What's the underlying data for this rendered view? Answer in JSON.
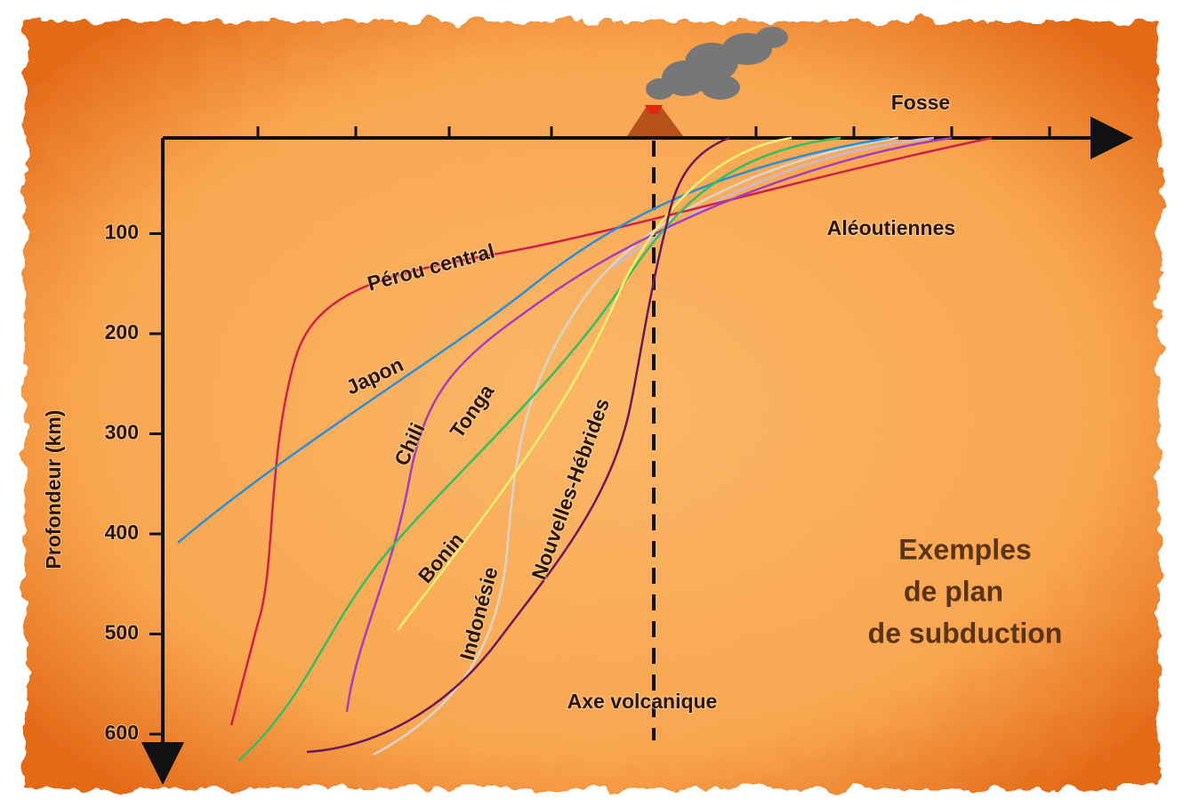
{
  "title": [
    "Exemples",
    "de plan",
    "de subduction"
  ],
  "depth_axis": {
    "label": "Profondeur (km)",
    "ylim": [
      0,
      600
    ],
    "yticks": [
      100,
      200,
      300,
      400,
      500,
      600
    ]
  },
  "top_axis": {
    "label": "Fosse"
  },
  "volcanic_axis": "Axe volcanique",
  "zones": [
    "Aléoutiennes",
    "Pérou central",
    "Japon",
    "Chili",
    "Tonga",
    "Bonin",
    "Indonésie",
    "Nouvelles-Hébrides"
  ]
}
